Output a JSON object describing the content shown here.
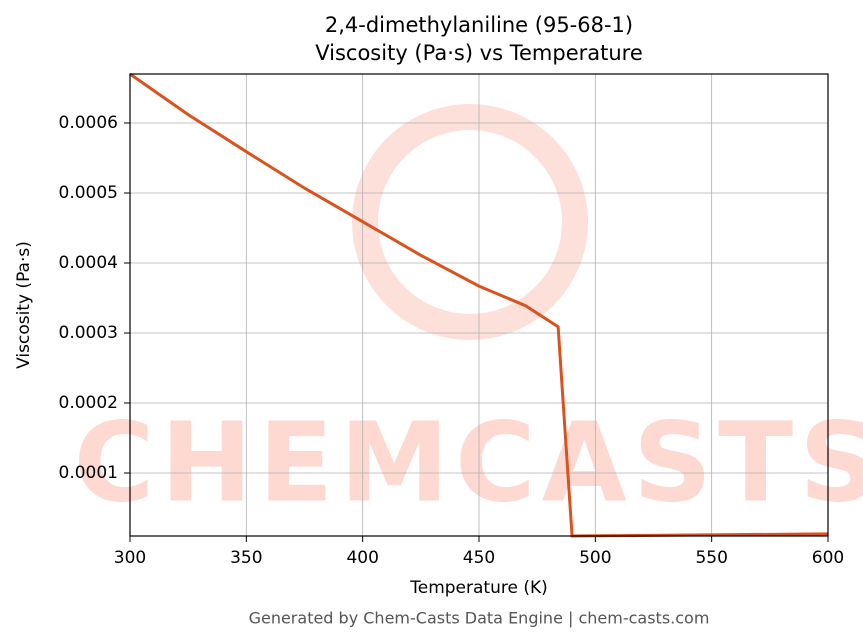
{
  "chart_data": {
    "type": "line",
    "title": "2,4-dimethylaniline (95-68-1)",
    "subtitle": "Viscosity (Pa·s) vs Temperature",
    "x_label": "Temperature (K)",
    "y_label": "Viscosity (Pa·s)",
    "watermark": "CHEMCASTS",
    "footer": "Generated by Chem-Casts Data Engine | chem-casts.com",
    "x": [
      300,
      325,
      350,
      375,
      400,
      425,
      450,
      470,
      484,
      490,
      600
    ],
    "series": [
      {
        "name": "Viscosity",
        "color": "#d9531e",
        "values": [
          0.00067,
          0.000612,
          0.000559,
          0.000507,
          0.000459,
          0.000411,
          0.000367,
          0.000339,
          0.000309,
          1e-05,
          1.3e-05
        ]
      }
    ],
    "xlim": [
      300,
      600
    ],
    "xticks": [
      300,
      350,
      400,
      450,
      500,
      550,
      600
    ],
    "ylim": [
      1e-05,
      0.00067
    ],
    "yticks": [
      0.0001,
      0.0002,
      0.0003,
      0.0004,
      0.0005,
      0.0006
    ],
    "grid": true
  }
}
